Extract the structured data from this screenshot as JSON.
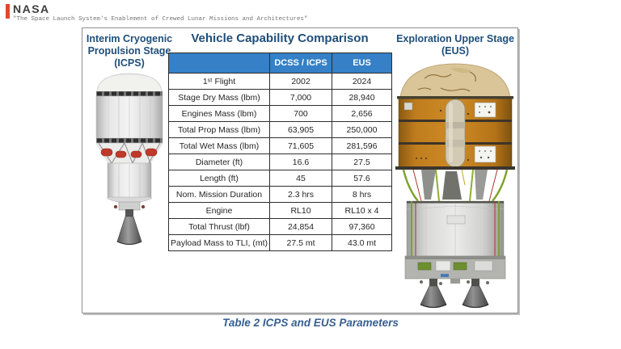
{
  "header": {
    "brand": "NASA",
    "subtitle": "\"The Space Launch System's Enablement of Crewed Lunar Missions and Architectures\""
  },
  "figure": {
    "icps_label": "Interim Cryogenic Propulsion Stage (ICPS)",
    "eus_label": "Exploration Upper Stage (EUS)",
    "table_title": "Vehicle Capability Comparison",
    "caption": "Table 2 ICPS and EUS Parameters"
  },
  "chart_data": {
    "type": "table",
    "title": "Vehicle Capability Comparison",
    "columns": [
      "",
      "DCSS / ICPS",
      "EUS"
    ],
    "rows": [
      [
        "1ˢᵗ Flight",
        "2002",
        "2024"
      ],
      [
        "Stage Dry Mass (lbm)",
        "7,000",
        "28,940"
      ],
      [
        "Engines Mass (lbm)",
        "700",
        "2,656"
      ],
      [
        "Total Prop Mass (lbm)",
        "63,905",
        "250,000"
      ],
      [
        "Total Wet Mass (lbm)",
        "71,605",
        "281,596"
      ],
      [
        "Diameter (ft)",
        "16.6",
        "27.5"
      ],
      [
        "Length (ft)",
        "45",
        "57.6"
      ],
      [
        "Nom. Mission Duration",
        "2.3 hrs",
        "8 hrs"
      ],
      [
        "Engine",
        "RL10",
        "RL10 x 4"
      ],
      [
        "Total Thrust (lbf)",
        "24,854",
        "97,360"
      ],
      [
        "Payload Mass to TLI, (mt)",
        "27.5 mt",
        "43.0 mt"
      ]
    ],
    "caption": "Table 2 ICPS and EUS Parameters"
  },
  "colors": {
    "heading_blue": "#1f4e79",
    "table_header_fill": "#3580c6",
    "caption_blue": "#365f91",
    "nasa_red": "#e0472f",
    "icps_tank_gray": "#e8e8e8",
    "eus_tank_orange": "#c07d1e",
    "eus_dome_tan": "#d9c598"
  }
}
